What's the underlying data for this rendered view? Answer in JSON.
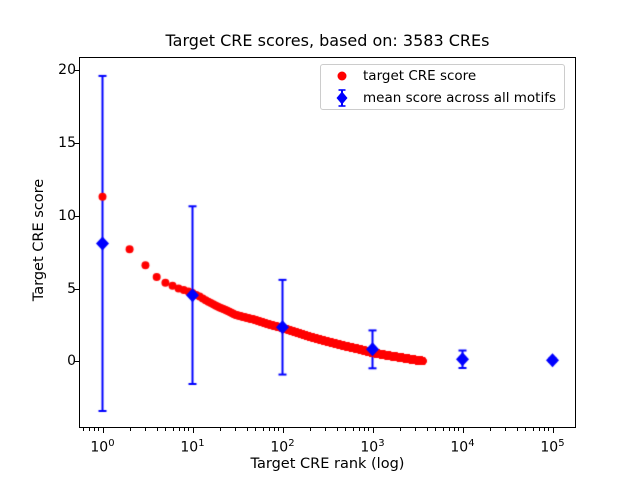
{
  "title": "Target CRE scores, based on: 3583 CREs",
  "axes": {
    "xlabel": "Target CRE rank (log)",
    "ylabel": "Target CRE score",
    "x_scale": "log",
    "xlim_log10": [
      -0.25,
      5.25
    ],
    "ylim": [
      -4.5,
      20.83
    ],
    "y_ticks": [
      0,
      5,
      10,
      15,
      20
    ],
    "x_ticks": [
      {
        "base": "10",
        "exp": "0",
        "value": 1
      },
      {
        "base": "10",
        "exp": "1",
        "value": 10
      },
      {
        "base": "10",
        "exp": "2",
        "value": 100
      },
      {
        "base": "10",
        "exp": "3",
        "value": 1000
      },
      {
        "base": "10",
        "exp": "4",
        "value": 10000
      },
      {
        "base": "10",
        "exp": "5",
        "value": 100000
      }
    ]
  },
  "legend": {
    "items": [
      {
        "label": "target CRE score",
        "marker": "circle",
        "color": "#ff0000"
      },
      {
        "label": "mean score across all motifs",
        "marker": "diamond-errorbar",
        "color": "#0000ff"
      }
    ]
  },
  "chart_data": {
    "type": "scatter",
    "title": "Target CRE scores, based on: 3583 CREs",
    "xlabel": "Target CRE rank (log)",
    "ylabel": "Target CRE score",
    "x_scale": "log",
    "xlim_log10": [
      -0.25,
      5.25
    ],
    "ylim": [
      -4.5,
      20.83
    ],
    "grid": false,
    "legend_position": "upper right",
    "n_red_points": 3583,
    "series": [
      {
        "name": "target CRE score",
        "marker": "circle",
        "color": "#ff0000",
        "marker_radius_px": 4,
        "description": "3583 points, one per CRE rank; score decreases monotonically; anchor points (rank, score) interpolated in log10(rank)",
        "anchors": [
          [
            1,
            11.3
          ],
          [
            2,
            7.7
          ],
          [
            3,
            6.6
          ],
          [
            4,
            5.8
          ],
          [
            5,
            5.4
          ],
          [
            6,
            5.2
          ],
          [
            7,
            5.0
          ],
          [
            8,
            4.9
          ],
          [
            9,
            4.8
          ],
          [
            10,
            4.7
          ],
          [
            12,
            4.45
          ],
          [
            15,
            4.1
          ],
          [
            20,
            3.7
          ],
          [
            25,
            3.45
          ],
          [
            30,
            3.2
          ],
          [
            40,
            3.0
          ],
          [
            50,
            2.85
          ],
          [
            70,
            2.55
          ],
          [
            100,
            2.3
          ],
          [
            150,
            1.95
          ],
          [
            200,
            1.7
          ],
          [
            300,
            1.4
          ],
          [
            500,
            1.05
          ],
          [
            700,
            0.85
          ],
          [
            1000,
            0.6
          ],
          [
            1500,
            0.4
          ],
          [
            2000,
            0.28
          ],
          [
            2500,
            0.18
          ],
          [
            3000,
            0.1
          ],
          [
            3583,
            0.03
          ]
        ]
      },
      {
        "name": "mean score across all motifs",
        "marker": "diamond",
        "color": "#0000ff",
        "x": [
          1,
          10,
          100,
          1000,
          10000,
          100000
        ],
        "y": [
          8.1,
          4.55,
          2.35,
          0.83,
          0.15,
          0.08
        ],
        "yerr": [
          11.5,
          6.1,
          3.25,
          1.3,
          0.6,
          0.12
        ]
      }
    ]
  }
}
